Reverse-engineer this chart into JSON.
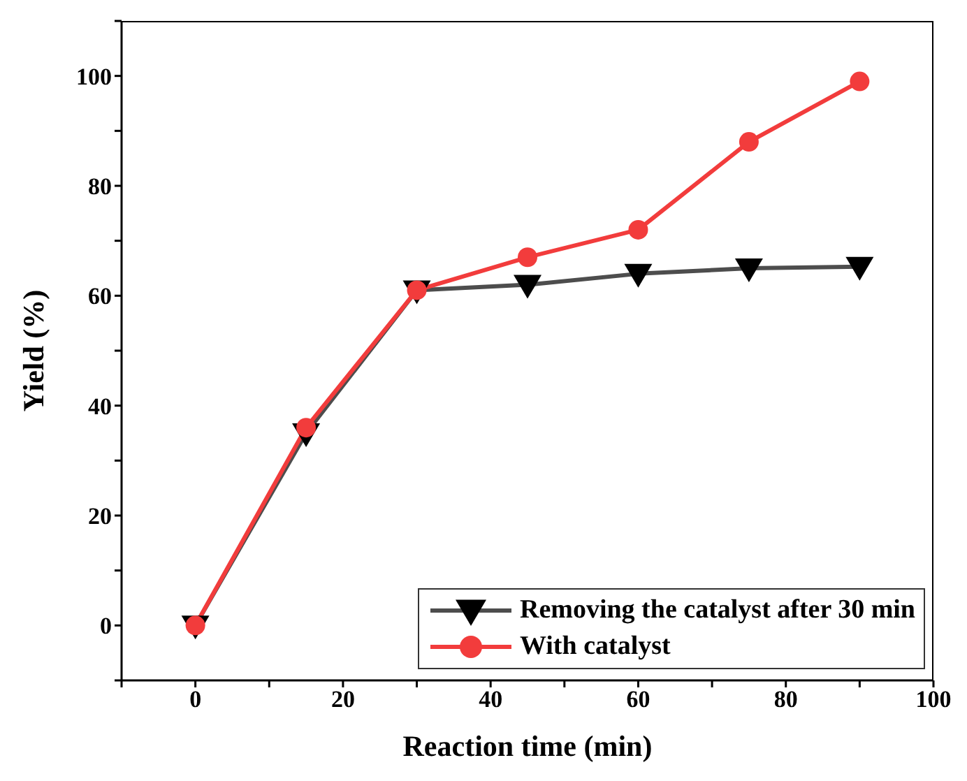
{
  "chart_data": {
    "type": "line",
    "xlabel": "Reaction time (min)",
    "ylabel": "Yield (%)",
    "x": [
      0,
      15,
      30,
      45,
      60,
      75,
      90
    ],
    "series": [
      {
        "name": "Removing the catalyst after 30 min",
        "color": "#4d4d4d",
        "marker": "triangle",
        "values": [
          0,
          35,
          61,
          62,
          64,
          65,
          65.3
        ]
      },
      {
        "name": "With catalyst",
        "color": "#f23c3c",
        "marker": "circle",
        "values": [
          0,
          36,
          61,
          67,
          72,
          88,
          99
        ]
      }
    ],
    "xlim": [
      -10,
      100
    ],
    "xticks": [
      {
        "value": -10,
        "label": null
      },
      0,
      {
        "value": 10,
        "label": null
      },
      20,
      {
        "value": 30,
        "label": null
      },
      40,
      {
        "value": 50,
        "label": null
      },
      60,
      {
        "value": 70,
        "label": null
      },
      80,
      {
        "value": 90,
        "label": null
      },
      100
    ],
    "ylim": [
      -10,
      110
    ],
    "yticks": [
      {
        "value": -10,
        "label": null
      },
      0,
      {
        "value": 10,
        "label": null
      },
      20,
      {
        "value": 30,
        "label": null
      },
      40,
      {
        "value": 50,
        "label": null
      },
      60,
      {
        "value": 70,
        "label": null
      },
      80,
      {
        "value": 90,
        "label": null
      },
      100,
      {
        "value": 110,
        "label": null
      }
    ],
    "grid": false,
    "legend": "bottom right",
    "line_style": "solid"
  }
}
